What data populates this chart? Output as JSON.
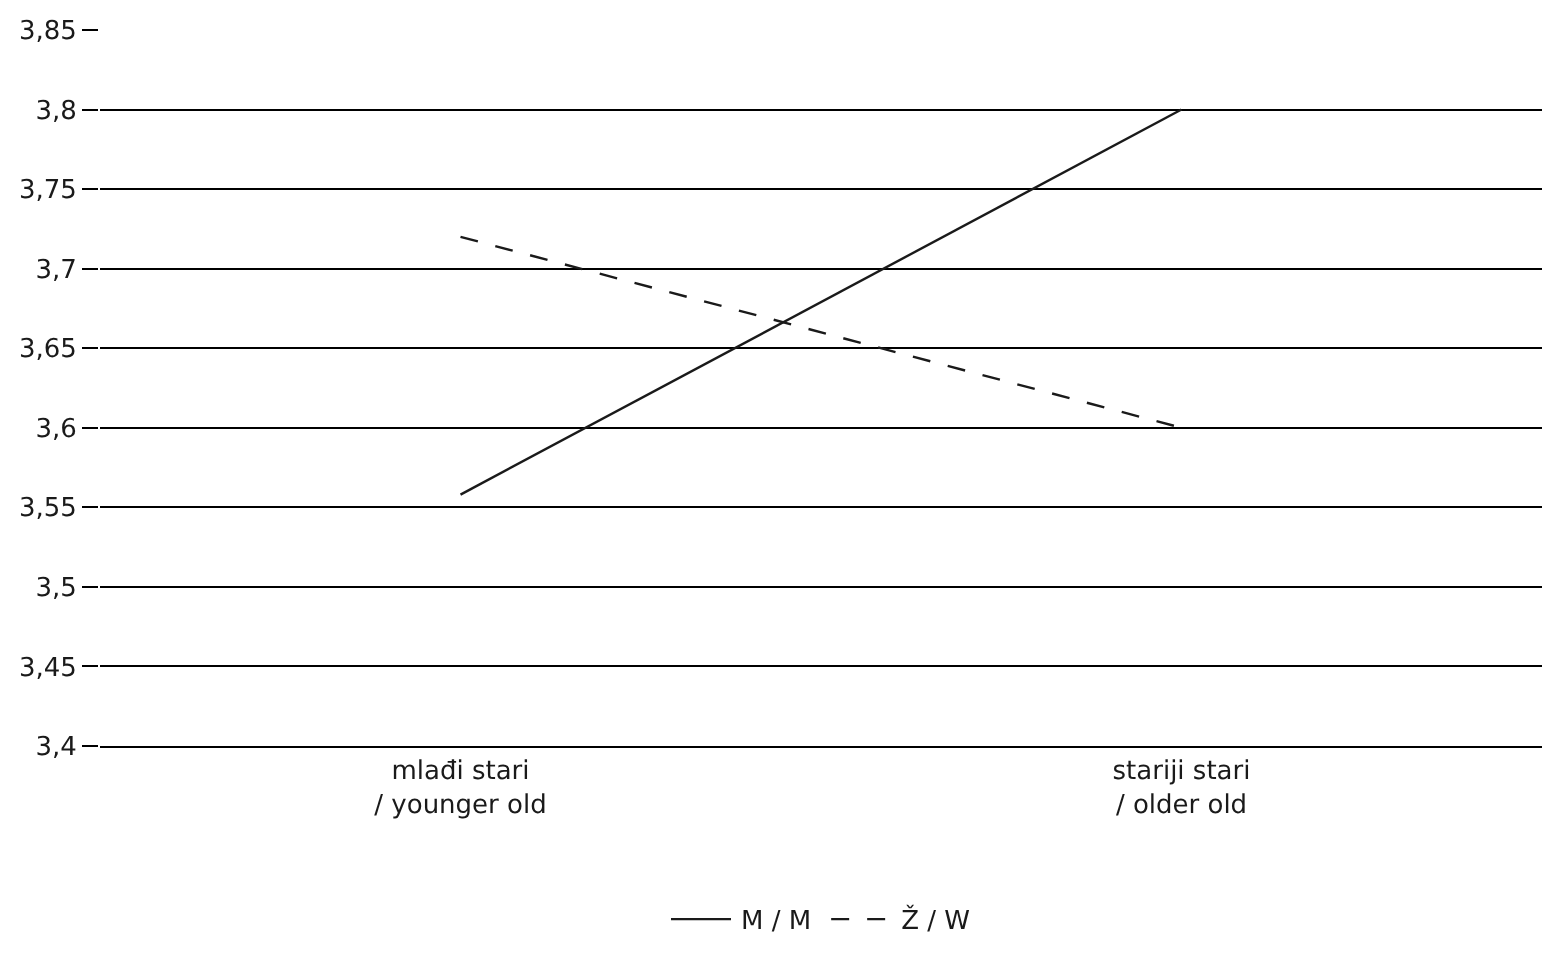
{
  "chart_data": {
    "type": "line",
    "categories": [
      "mlađi stari\n/ younger old",
      "stariji stari\n/ older old"
    ],
    "series": [
      {
        "name": "M / M",
        "color": "#1a1a1a",
        "values": [
          3.558,
          3.8
        ],
        "line_style": "solid"
      },
      {
        "name": "Ž / W",
        "color": "#1a1a1a",
        "values": [
          3.72,
          3.6
        ],
        "line_style": "dashed"
      }
    ],
    "ylim": [
      3.4,
      3.85
    ],
    "yticks": [
      {
        "value": 3.4,
        "label": "3,4"
      },
      {
        "value": 3.45,
        "label": "3,45"
      },
      {
        "value": 3.5,
        "label": "3,5"
      },
      {
        "value": 3.55,
        "label": "3,55"
      },
      {
        "value": 3.6,
        "label": "3,6"
      },
      {
        "value": 3.65,
        "label": "3,65"
      },
      {
        "value": 3.7,
        "label": "3,7"
      },
      {
        "value": 3.75,
        "label": "3,75"
      },
      {
        "value": 3.8,
        "label": "3,8"
      },
      {
        "value": 3.85,
        "label": "3,85"
      }
    ],
    "grid": "y",
    "legend": "bottom",
    "marker": "none"
  }
}
